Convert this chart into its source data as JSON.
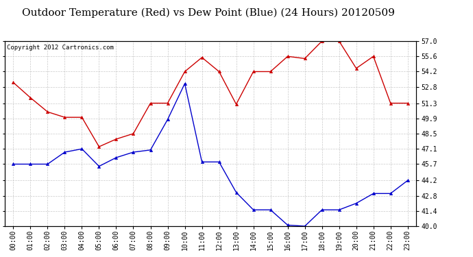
{
  "title": "Outdoor Temperature (Red) vs Dew Point (Blue) (24 Hours) 20120509",
  "copyright": "Copyright 2012 Cartronics.com",
  "hours": [
    "00:00",
    "01:00",
    "02:00",
    "03:00",
    "04:00",
    "05:00",
    "06:00",
    "07:00",
    "08:00",
    "09:00",
    "10:00",
    "11:00",
    "12:00",
    "13:00",
    "14:00",
    "15:00",
    "16:00",
    "17:00",
    "18:00",
    "19:00",
    "20:00",
    "21:00",
    "22:00",
    "23:00"
  ],
  "temp_red": [
    53.2,
    51.8,
    50.5,
    50.0,
    50.0,
    47.3,
    48.0,
    48.5,
    51.3,
    51.3,
    54.2,
    55.5,
    54.2,
    51.2,
    54.2,
    54.2,
    55.6,
    55.4,
    57.0,
    57.0,
    54.5,
    55.6,
    51.3,
    51.3
  ],
  "dew_blue": [
    45.7,
    45.7,
    45.7,
    46.8,
    47.1,
    45.5,
    46.3,
    46.8,
    47.0,
    49.8,
    53.1,
    45.9,
    45.9,
    43.1,
    41.5,
    41.5,
    40.1,
    40.0,
    41.5,
    41.5,
    42.1,
    43.0,
    43.0,
    44.2
  ],
  "ylim": [
    40.0,
    57.0
  ],
  "yticks": [
    40.0,
    41.4,
    42.8,
    44.2,
    45.7,
    47.1,
    48.5,
    49.9,
    51.3,
    52.8,
    54.2,
    55.6,
    57.0
  ],
  "bg_color": "#ffffff",
  "plot_bg": "#ffffff",
  "grid_color": "#bbbbbb",
  "red_color": "#cc0000",
  "blue_color": "#0000cc",
  "title_fontsize": 11,
  "copyright_fontsize": 6.5,
  "tick_fontsize": 7
}
